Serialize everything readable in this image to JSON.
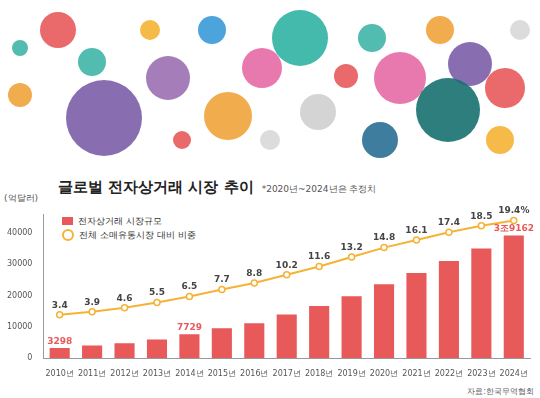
{
  "chart_data": {
    "type": "bar",
    "title": "글로벌 전자상거래 시장 추이",
    "subtitle": "*2020년~2024년은 추정치",
    "ylabel": "(억달러)",
    "source": "자료:한국무역협회",
    "categories": [
      "2010년",
      "2011년",
      "2012년",
      "2013년",
      "2014년",
      "2015년",
      "2016년",
      "2017년",
      "2018년",
      "2019년",
      "2020년",
      "2021년",
      "2022년",
      "2023년",
      "2024년"
    ],
    "series": [
      {
        "name": "전자상거래 시장규모",
        "type": "bar",
        "color": "#e8595a",
        "values": [
          3298,
          4100,
          4800,
          6000,
          7729,
          9600,
          11200,
          14000,
          16700,
          19800,
          23600,
          27200,
          31000,
          35000,
          39162
        ],
        "value_labels": [
          "3298",
          null,
          null,
          null,
          "7729",
          null,
          null,
          null,
          null,
          null,
          null,
          null,
          null,
          null,
          "3조9162"
        ]
      },
      {
        "name": "전체 소매유통시장 대비 비중",
        "type": "line",
        "axis": "y2",
        "color": "#f5b335",
        "marker": "circle",
        "values": [
          3.4,
          3.9,
          4.6,
          5.5,
          6.5,
          7.7,
          8.8,
          10.2,
          11.6,
          13.2,
          14.8,
          16.1,
          17.4,
          18.5,
          19.4
        ],
        "value_labels": [
          "3.4",
          "3.9",
          "4.6",
          "5.5",
          "6.5",
          "7.7",
          "8.8",
          "10.2",
          "11.6",
          "13.2",
          "14.8",
          "16.1",
          "17.4",
          "18.5",
          "19.4%"
        ]
      }
    ],
    "ylim": [
      0,
      46000
    ],
    "yticks": [
      0,
      10000,
      20000,
      30000,
      40000
    ],
    "y2lim": [
      -4,
      20.5
    ],
    "y2ticks": [],
    "data_labels": true,
    "grid": false,
    "legend": "upper left"
  }
}
